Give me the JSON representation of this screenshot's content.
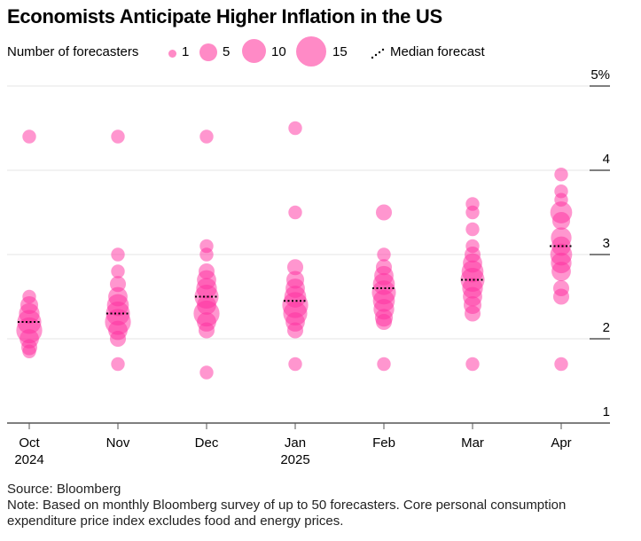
{
  "title": "Economists Anticipate Higher Inflation in the US",
  "legend": {
    "size_label": "Number of forecasters",
    "sizes": [
      "1",
      "5",
      "10",
      "15"
    ],
    "median_label": "Median forecast"
  },
  "source": "Source: Bloomberg",
  "note": "Note: Based on monthly Bloomberg survey of up to 50 forecasters. Core personal consumption expenditure price index excludes food and energy prices.",
  "colors": {
    "bubble": "#ff2ea0",
    "median": "#000000",
    "grid": "#e6e6e6",
    "axis": "#555555"
  },
  "chart_data": {
    "type": "scatter",
    "title": "Economists Anticipate Higher Inflation in the US",
    "xlabel": "",
    "ylabel": "",
    "ylim": [
      1,
      5
    ],
    "yticks": [
      1,
      2,
      3,
      4,
      5
    ],
    "ytick_labels": [
      "1",
      "2",
      "3",
      "4",
      "5%"
    ],
    "grid": true,
    "legend_position": "top-left",
    "categories": [
      "Oct",
      "Nov",
      "Dec",
      "Jan",
      "Feb",
      "Mar",
      "Apr"
    ],
    "category_sublabels": [
      "2024",
      "",
      "",
      "2025",
      "",
      "",
      ""
    ],
    "medians": [
      2.2,
      2.3,
      2.5,
      2.45,
      2.6,
      2.7,
      3.1
    ],
    "series": [
      {
        "name": "Oct",
        "points": [
          [
            4.4,
            1
          ],
          [
            2.5,
            1
          ],
          [
            2.4,
            3
          ],
          [
            2.3,
            5
          ],
          [
            2.2,
            8
          ],
          [
            2.1,
            10
          ],
          [
            2.0,
            4
          ],
          [
            1.9,
            2
          ],
          [
            1.85,
            1
          ]
        ]
      },
      {
        "name": "Nov",
        "points": [
          [
            4.4,
            1
          ],
          [
            3.0,
            1
          ],
          [
            2.8,
            1
          ],
          [
            2.65,
            2
          ],
          [
            2.5,
            4
          ],
          [
            2.4,
            6
          ],
          [
            2.3,
            8
          ],
          [
            2.2,
            10
          ],
          [
            2.1,
            4
          ],
          [
            2.0,
            2
          ],
          [
            1.7,
            1
          ]
        ]
      },
      {
        "name": "Dec",
        "points": [
          [
            4.4,
            1
          ],
          [
            3.1,
            1
          ],
          [
            3.0,
            1
          ],
          [
            2.8,
            2
          ],
          [
            2.7,
            4
          ],
          [
            2.6,
            5
          ],
          [
            2.5,
            8
          ],
          [
            2.4,
            4
          ],
          [
            2.3,
            10
          ],
          [
            2.2,
            4
          ],
          [
            2.1,
            2
          ],
          [
            1.6,
            1
          ]
        ]
      },
      {
        "name": "Jan",
        "points": [
          [
            4.5,
            1
          ],
          [
            3.5,
            1
          ],
          [
            2.85,
            2
          ],
          [
            2.7,
            3
          ],
          [
            2.6,
            4
          ],
          [
            2.5,
            6
          ],
          [
            2.4,
            10
          ],
          [
            2.3,
            8
          ],
          [
            2.2,
            4
          ],
          [
            2.1,
            2
          ],
          [
            1.7,
            1
          ]
        ]
      },
      {
        "name": "Feb",
        "points": [
          [
            3.5,
            2
          ],
          [
            3.0,
            1
          ],
          [
            2.85,
            2
          ],
          [
            2.75,
            4
          ],
          [
            2.65,
            6
          ],
          [
            2.55,
            8
          ],
          [
            2.45,
            6
          ],
          [
            2.35,
            5
          ],
          [
            2.25,
            3
          ],
          [
            2.2,
            2
          ],
          [
            1.7,
            1
          ]
        ]
      },
      {
        "name": "Mar",
        "points": [
          [
            3.6,
            1
          ],
          [
            3.5,
            1
          ],
          [
            3.3,
            1
          ],
          [
            3.1,
            1
          ],
          [
            3.0,
            2
          ],
          [
            2.9,
            4
          ],
          [
            2.8,
            6
          ],
          [
            2.7,
            8
          ],
          [
            2.6,
            5
          ],
          [
            2.5,
            4
          ],
          [
            2.4,
            3
          ],
          [
            2.3,
            2
          ],
          [
            1.7,
            1
          ]
        ]
      },
      {
        "name": "Apr",
        "points": [
          [
            3.95,
            1
          ],
          [
            3.75,
            1
          ],
          [
            3.65,
            1
          ],
          [
            3.5,
            6
          ],
          [
            3.4,
            3
          ],
          [
            3.2,
            5
          ],
          [
            3.1,
            4
          ],
          [
            3.0,
            6
          ],
          [
            2.9,
            5
          ],
          [
            2.8,
            4
          ],
          [
            2.6,
            2
          ],
          [
            2.5,
            2
          ],
          [
            1.7,
            1
          ]
        ]
      }
    ]
  }
}
